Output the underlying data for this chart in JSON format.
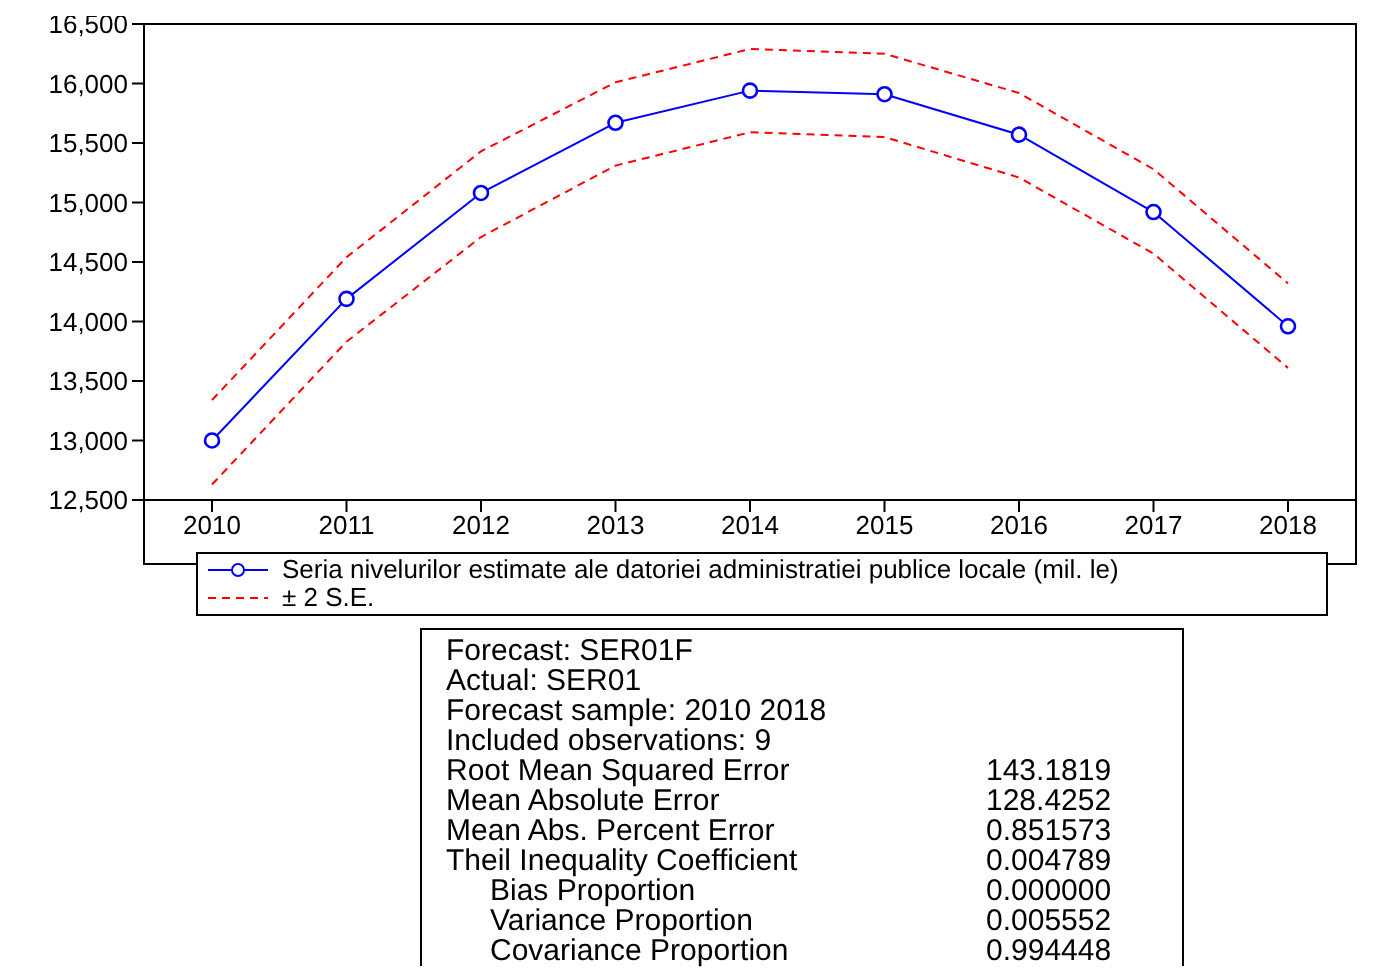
{
  "chart_data": {
    "type": "line",
    "categories": [
      "2010",
      "2011",
      "2012",
      "2013",
      "2014",
      "2015",
      "2016",
      "2017",
      "2018"
    ],
    "series": [
      {
        "name": "Seria nivelurilor estimate ale datoriei administratiei publice locale (mil. le)",
        "color": "#0000ff",
        "marker": "circle",
        "line_style": "solid",
        "values": [
          13000,
          14190,
          15080,
          15670,
          15940,
          15910,
          15570,
          14920,
          13960
        ]
      },
      {
        "name": "± 2 S.E.",
        "color": "#ff0000",
        "marker": "none",
        "line_style": "dashed",
        "values": [
          13340,
          14540,
          15430,
          16010,
          16290,
          16250,
          15920,
          15280,
          14320
        ]
      },
      {
        "color": "#ff0000",
        "marker": "none",
        "line_style": "dashed",
        "values": [
          12630,
          13830,
          14710,
          15310,
          15590,
          15550,
          15210,
          14570,
          13610
        ]
      }
    ],
    "ylim": [
      12500,
      16500
    ],
    "yticks": [
      {
        "value": 12500,
        "label": "12,500"
      },
      {
        "value": 13000,
        "label": "13,000"
      },
      {
        "value": 13500,
        "label": "13,500"
      },
      {
        "value": 14000,
        "label": "14,000"
      },
      {
        "value": 14500,
        "label": "14,500"
      },
      {
        "value": 15000,
        "label": "15,000"
      },
      {
        "value": 15500,
        "label": "15,500"
      },
      {
        "value": 16000,
        "label": "16,000"
      },
      {
        "value": 16500,
        "label": "16,500"
      }
    ],
    "grid": false,
    "legend": "bottom",
    "annotations": [
      "Forecast: SER01F",
      "Actual: SER01",
      "Forecast sample: 2010 2018",
      "Included observations: 9",
      "Root Mean Squared Error\t143.1819",
      "Mean Absolute Error\t128.4252",
      "Mean Abs. Percent Error\t0.851573",
      "Theil Inequality Coefficient\t0.004789",
      "Bias Proportion\t0.000000",
      "Variance Proportion\t0.005552",
      "Covariance Proportion\t0.994448"
    ]
  }
}
